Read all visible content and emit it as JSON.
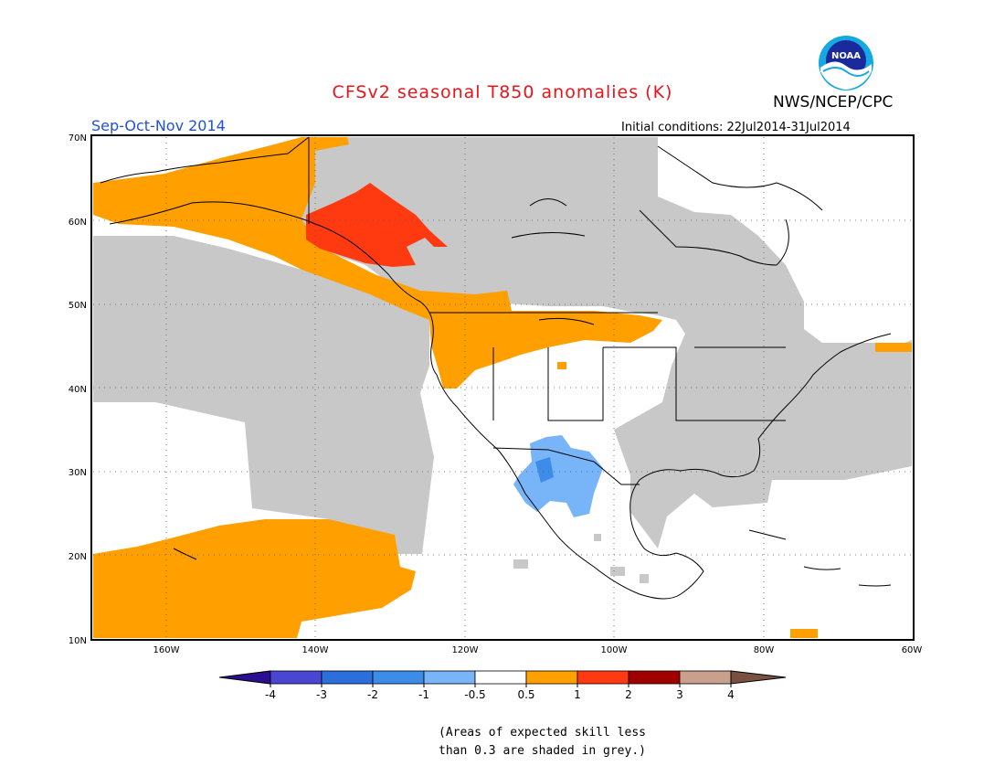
{
  "header": {
    "title": "CFSv2 seasonal T850 anomalies (K)",
    "agency": "NWS/NCEP/CPC",
    "season": "Sep-Oct-Nov 2014",
    "initial_conditions": "Initial conditions: 22Jul2014-31Jul2014",
    "logo_text": "NOAA",
    "colors": {
      "title": "#e8141c",
      "season": "#2250d8"
    }
  },
  "map": {
    "lon_range": [
      -170,
      -60
    ],
    "lat_range": [
      10,
      70
    ],
    "lon_ticks": [
      "160W",
      "140W",
      "120W",
      "100W",
      "80W",
      "60W"
    ],
    "lat_ticks": [
      "10N",
      "20N",
      "30N",
      "40N",
      "50N",
      "60N",
      "70N"
    ],
    "grey_meaning": "low skill",
    "colors": {
      "grey": "#c8c8c8",
      "orange": "#ffa000",
      "red": "#ff3a10",
      "light_blue": "#78b4f8",
      "blue": "#3c8ce8",
      "land_line": "#000000"
    }
  },
  "legend": {
    "labels": [
      "-4",
      "-3",
      "-2",
      "-1",
      "-0.5",
      "0.5",
      "1",
      "2",
      "3",
      "4"
    ],
    "colors": [
      "#2a0f90",
      "#4a46d2",
      "#2c6edc",
      "#3c8ce8",
      "#78b4f8",
      "#ffffff",
      "#ffa000",
      "#ff3a10",
      "#a00000",
      "#c8a08c",
      "#7a5040"
    ]
  },
  "note": {
    "line1": "(Areas of expected skill less",
    "line2": "than 0.3 are shaded in grey.)"
  }
}
